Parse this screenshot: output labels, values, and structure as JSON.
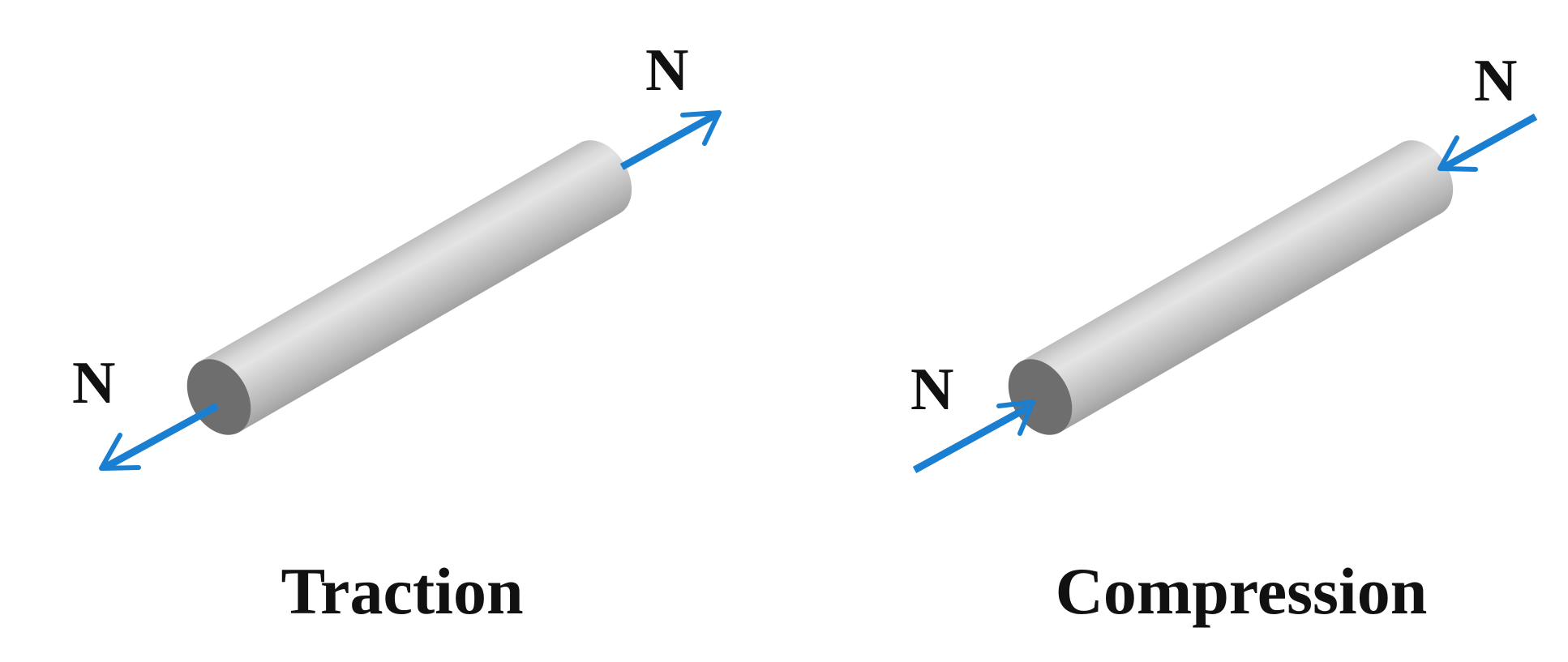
{
  "panels": [
    {
      "caption": "Traction",
      "force_label_end_1": "N",
      "force_label_end_2": "N",
      "arrow_direction": "outward"
    },
    {
      "caption": "Compression",
      "force_label_end_1": "N",
      "force_label_end_2": "N",
      "arrow_direction": "inward"
    }
  ],
  "colors": {
    "arrow": "#1a7fd1",
    "cylinder_body_light": "#dcdcdc",
    "cylinder_body_mid": "#c6c6c6",
    "cylinder_body_dark": "#a8a8a8",
    "cylinder_end_face": "#6e6e6e",
    "text": "#111111"
  }
}
